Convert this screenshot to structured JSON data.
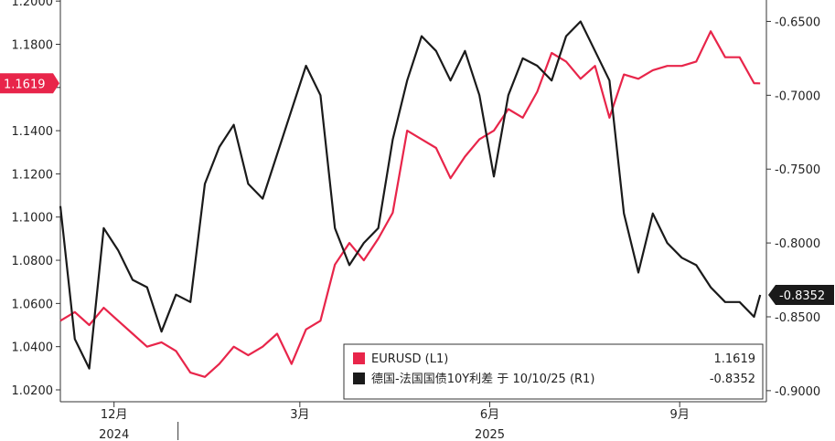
{
  "chart_data": {
    "type": "line",
    "x_axis": {
      "month_labels": [
        {
          "label": "12月",
          "date": "2024-12-01"
        },
        {
          "label": "3月",
          "date": "2025-03-01"
        },
        {
          "label": "6月",
          "date": "2025-06-01"
        },
        {
          "label": "9月",
          "date": "2025-09-01"
        }
      ],
      "year_labels": [
        {
          "label": "2024",
          "date": "2024-12-01"
        },
        {
          "label": "2025",
          "date": "2025-06-01"
        }
      ],
      "range": [
        "2024-11-05",
        "2025-10-13"
      ]
    },
    "left_axis": {
      "ylim": [
        1.0145,
        1.2005
      ],
      "ticks": [
        "1.0200",
        "1.0400",
        "1.0600",
        "1.0800",
        "1.1000",
        "1.1200",
        "1.1400",
        "1.1600",
        "1.1800",
        "1.2000"
      ],
      "last_value_label": "1.1619",
      "last_value": 1.1619,
      "badge_color": "#e8254a"
    },
    "right_axis": {
      "ylim": [
        -0.9075,
        -0.6355
      ],
      "ticks": [
        "-0.6500",
        "-0.7000",
        "-0.7500",
        "-0.8000",
        "-0.8500",
        "-0.9000"
      ],
      "last_value_label": "-0.8352",
      "last_value": -0.8352,
      "badge_color": "#1a1a1a"
    },
    "series": [
      {
        "name": "EURUSD (L1)",
        "axis": "left",
        "color": "#e8254a",
        "legend_value": "1.1619",
        "x": [
          "2024-11-05",
          "2024-11-12",
          "2024-11-19",
          "2024-11-26",
          "2024-12-03",
          "2024-12-10",
          "2024-12-17",
          "2024-12-24",
          "2024-12-31",
          "2025-01-07",
          "2025-01-14",
          "2025-01-21",
          "2025-01-28",
          "2025-02-04",
          "2025-02-11",
          "2025-02-18",
          "2025-02-25",
          "2025-03-04",
          "2025-03-11",
          "2025-03-18",
          "2025-03-25",
          "2025-04-01",
          "2025-04-08",
          "2025-04-15",
          "2025-04-22",
          "2025-04-29",
          "2025-05-06",
          "2025-05-13",
          "2025-05-20",
          "2025-05-27",
          "2025-06-03",
          "2025-06-10",
          "2025-06-17",
          "2025-06-24",
          "2025-07-01",
          "2025-07-08",
          "2025-07-15",
          "2025-07-22",
          "2025-07-29",
          "2025-08-05",
          "2025-08-12",
          "2025-08-19",
          "2025-08-26",
          "2025-09-02",
          "2025-09-09",
          "2025-09-16",
          "2025-09-23",
          "2025-09-30",
          "2025-10-07",
          "2025-10-10"
        ],
        "values": [
          1.052,
          1.056,
          1.05,
          1.058,
          1.052,
          1.046,
          1.04,
          1.042,
          1.038,
          1.028,
          1.026,
          1.032,
          1.04,
          1.036,
          1.04,
          1.046,
          1.032,
          1.048,
          1.052,
          1.078,
          1.088,
          1.08,
          1.09,
          1.102,
          1.14,
          1.136,
          1.132,
          1.118,
          1.128,
          1.136,
          1.14,
          1.15,
          1.146,
          1.158,
          1.176,
          1.172,
          1.164,
          1.17,
          1.146,
          1.166,
          1.164,
          1.168,
          1.17,
          1.17,
          1.172,
          1.186,
          1.174,
          1.174,
          1.162,
          1.1619
        ]
      },
      {
        "name": "德国-法国国债10Y利差 于 10/10/25 (R1)",
        "axis": "right",
        "color": "#1a1a1a",
        "legend_value": "-0.8352",
        "x": [
          "2024-11-05",
          "2024-11-12",
          "2024-11-19",
          "2024-11-26",
          "2024-12-03",
          "2024-12-10",
          "2024-12-17",
          "2024-12-24",
          "2024-12-31",
          "2025-01-07",
          "2025-01-14",
          "2025-01-21",
          "2025-01-28",
          "2025-02-04",
          "2025-02-11",
          "2025-02-18",
          "2025-02-25",
          "2025-03-04",
          "2025-03-11",
          "2025-03-18",
          "2025-03-25",
          "2025-04-01",
          "2025-04-08",
          "2025-04-15",
          "2025-04-22",
          "2025-04-29",
          "2025-05-06",
          "2025-05-13",
          "2025-05-20",
          "2025-05-27",
          "2025-06-03",
          "2025-06-10",
          "2025-06-17",
          "2025-06-24",
          "2025-07-01",
          "2025-07-08",
          "2025-07-15",
          "2025-07-22",
          "2025-07-29",
          "2025-08-05",
          "2025-08-12",
          "2025-08-19",
          "2025-08-26",
          "2025-09-02",
          "2025-09-09",
          "2025-09-16",
          "2025-09-23",
          "2025-09-30",
          "2025-10-07",
          "2025-10-10"
        ],
        "values": [
          -0.775,
          -0.865,
          -0.885,
          -0.79,
          -0.805,
          -0.825,
          -0.83,
          -0.86,
          -0.835,
          -0.84,
          -0.76,
          -0.735,
          -0.72,
          -0.76,
          -0.77,
          -0.74,
          -0.71,
          -0.68,
          -0.7,
          -0.79,
          -0.815,
          -0.8,
          -0.79,
          -0.73,
          -0.69,
          -0.66,
          -0.67,
          -0.69,
          -0.67,
          -0.7,
          -0.755,
          -0.7,
          -0.675,
          -0.68,
          -0.69,
          -0.66,
          -0.65,
          -0.67,
          -0.69,
          -0.78,
          -0.82,
          -0.78,
          -0.8,
          -0.81,
          -0.815,
          -0.83,
          -0.84,
          -0.84,
          -0.85,
          -0.8352
        ]
      }
    ],
    "grid": false,
    "legend_position": "bottom-right"
  }
}
